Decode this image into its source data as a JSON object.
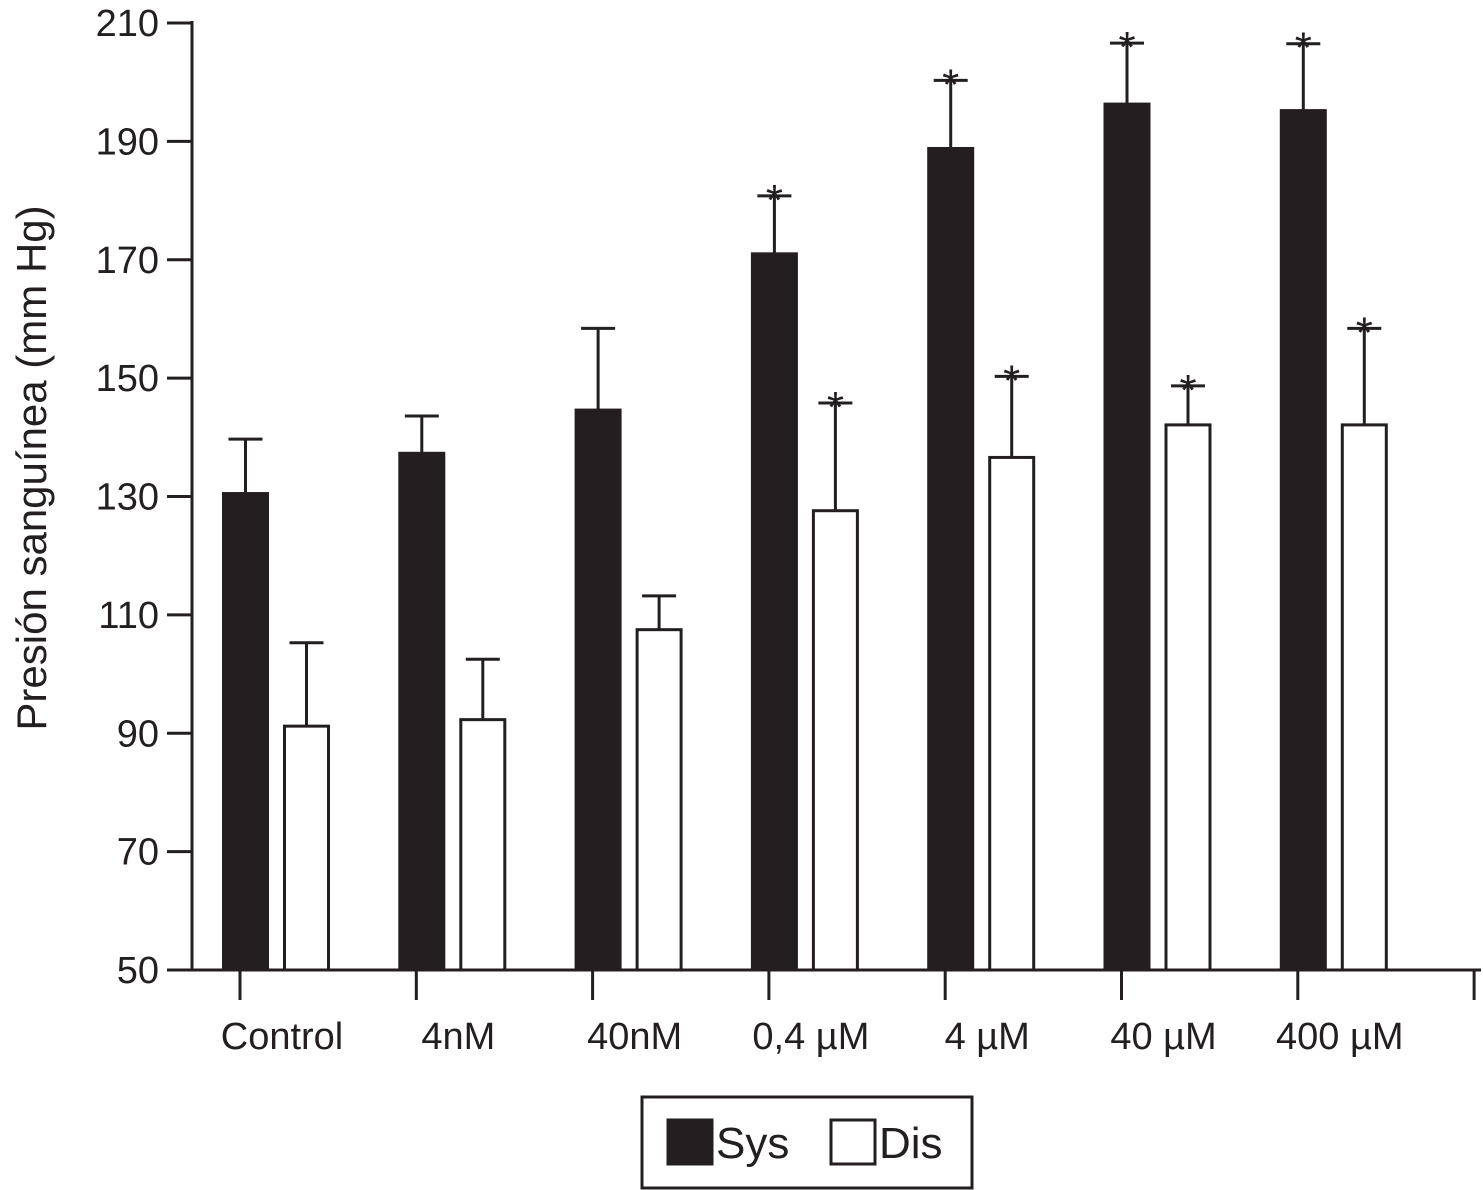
{
  "chart_data": {
    "type": "bar",
    "title": "",
    "xlabel": "",
    "ylabel": "Presión sanguínea (mm Hg)",
    "ylim": [
      50,
      210
    ],
    "yticks": [
      "50",
      "70",
      "90",
      "110",
      "130",
      "150",
      "170",
      "190",
      "210"
    ],
    "categories": [
      "Control",
      "4nM",
      "40nM",
      "0,4 µM",
      "4 µM",
      "40 µM",
      "400 µM"
    ],
    "series": [
      {
        "name": "Sys",
        "color": "#231f20",
        "values": [
          130.5,
          137.3,
          144.6,
          171.0,
          188.8,
          196.3,
          195.2
        ],
        "errors": [
          9.2,
          6.3,
          13.8,
          9.8,
          11.5,
          10.3,
          11.3
        ],
        "significant": [
          false,
          false,
          false,
          true,
          true,
          true,
          true
        ]
      },
      {
        "name": "Dis",
        "color": "#ffffff",
        "values": [
          91.2,
          92.3,
          107.5,
          127.6,
          136.6,
          142.1,
          142.1
        ],
        "errors": [
          14.1,
          10.2,
          5.7,
          18.2,
          13.7,
          6.6,
          16.3
        ],
        "significant": [
          false,
          false,
          false,
          true,
          true,
          true,
          true
        ]
      }
    ],
    "significance_marker": "*",
    "grid": false,
    "legend_position": "bottom-center"
  }
}
